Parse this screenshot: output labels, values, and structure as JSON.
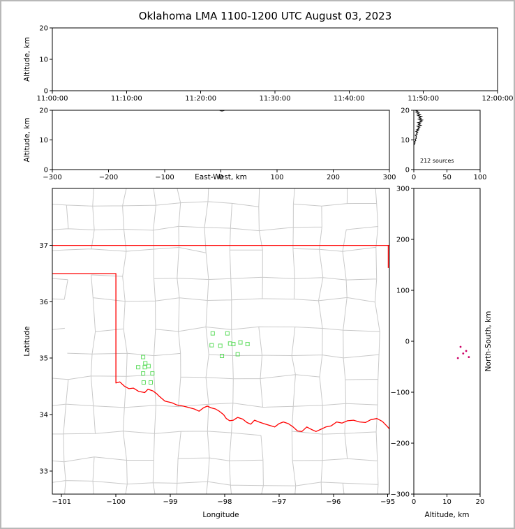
{
  "title": "Oklahoma LMA 1100-1200 UTC August 03, 2023",
  "figure": {
    "background": "#ffffff",
    "frame_color": "#b8b8b8"
  },
  "chart_data": [
    {
      "id": "time_height",
      "type": "scatter",
      "xlabel": "",
      "ylabel": "Altitude, km",
      "xlim": [
        0,
        3600
      ],
      "xtick_values": [
        0,
        600,
        1200,
        1800,
        2400,
        3000,
        3600
      ],
      "xtick_labels": [
        "11:00:00",
        "11:10:00",
        "11:20:00",
        "11:30:00",
        "11:40:00",
        "11:50:00",
        "12:00:00"
      ],
      "ylim": [
        0,
        20
      ],
      "ytick_values": [
        0,
        10,
        20
      ],
      "ytick_labels": [
        "0",
        "10",
        "20"
      ],
      "points": [],
      "point_color": "#000000"
    },
    {
      "id": "ew_height",
      "type": "scatter",
      "xlabel": "East-West, km",
      "ylabel": "Altitude, km",
      "xlim": [
        -300,
        300
      ],
      "xtick_values": [
        -300,
        -200,
        -100,
        0,
        100,
        200,
        300
      ],
      "xtick_labels": [
        "−300",
        "−200",
        "−100",
        "0",
        "100",
        "200",
        "300"
      ],
      "ylim": [
        0,
        20
      ],
      "ytick_values": [
        0,
        10,
        20
      ],
      "ytick_labels": [
        "0",
        "10",
        "20"
      ],
      "points": [
        [
          -1,
          19.9
        ],
        [
          2,
          19.8
        ],
        [
          5,
          19.95
        ]
      ],
      "point_color": "#000000"
    },
    {
      "id": "source_histogram",
      "type": "line",
      "xlabel": "",
      "ylabel": "",
      "xlim": [
        0,
        100
      ],
      "xtick_values": [
        0,
        50,
        100
      ],
      "xtick_labels": [
        "0",
        "50",
        "100"
      ],
      "ylim": [
        0,
        20
      ],
      "ytick_values": [
        0,
        10,
        20
      ],
      "ytick_labels": [
        "0",
        "10",
        "20"
      ],
      "annotation": "212 sources",
      "line_color": "#000000",
      "profile_count_alt": [
        [
          2,
          20
        ],
        [
          6,
          19.7
        ],
        [
          3,
          19.4
        ],
        [
          8,
          19.1
        ],
        [
          5,
          18.8
        ],
        [
          10,
          18.5
        ],
        [
          6,
          18.2
        ],
        [
          12,
          17.9
        ],
        [
          8,
          17.6
        ],
        [
          11,
          17.3
        ],
        [
          7,
          17.0
        ],
        [
          13,
          16.7
        ],
        [
          9,
          16.4
        ],
        [
          12,
          16.1
        ],
        [
          6,
          15.8
        ],
        [
          10,
          15.5
        ],
        [
          7,
          15.2
        ],
        [
          11,
          14.9
        ],
        [
          5,
          14.6
        ],
        [
          9,
          14.3
        ],
        [
          6,
          14.0
        ],
        [
          8,
          13.7
        ],
        [
          4,
          13.4
        ],
        [
          7,
          13.1
        ],
        [
          3,
          12.8
        ],
        [
          6,
          12.5
        ],
        [
          4,
          12.2
        ],
        [
          5,
          11.9
        ],
        [
          2,
          11.6
        ],
        [
          4,
          11.3
        ],
        [
          3,
          11.0
        ],
        [
          4,
          10.6
        ],
        [
          2,
          10.2
        ],
        [
          3,
          9.8
        ],
        [
          1,
          9.4
        ],
        [
          2,
          9.0
        ],
        [
          1,
          8.6
        ],
        [
          0,
          8.2
        ]
      ]
    },
    {
      "id": "plan_view",
      "type": "scatter",
      "xlabel": "Longitude",
      "ylabel": "Latitude",
      "xlim": [
        -101.17,
        -94.97
      ],
      "xtick_values": [
        -101,
        -100,
        -99,
        -98,
        -97,
        -96,
        -95
      ],
      "xtick_labels": [
        "−101",
        "−100",
        "−99",
        "−98",
        "−97",
        "−96",
        "−95"
      ],
      "ylim": [
        32.59,
        38.01
      ],
      "ytick_values": [
        33,
        34,
        35,
        36,
        37
      ],
      "ytick_labels": [
        "33",
        "34",
        "35",
        "36",
        "37"
      ],
      "marker": "open-square",
      "point_color": "#5fdc5f",
      "county_line_color": "#c9c9c9",
      "state_border_color": "#ff0000",
      "points": [
        [
          -98.22,
          35.44
        ],
        [
          -97.95,
          35.44
        ],
        [
          -98.24,
          35.23
        ],
        [
          -98.08,
          35.22
        ],
        [
          -97.9,
          35.26
        ],
        [
          -97.84,
          35.25
        ],
        [
          -97.71,
          35.28
        ],
        [
          -97.58,
          35.25
        ],
        [
          -98.05,
          35.04
        ],
        [
          -97.76,
          35.07
        ],
        [
          -99.5,
          35.02
        ],
        [
          -99.46,
          34.91
        ],
        [
          -99.59,
          34.84
        ],
        [
          -99.47,
          34.84
        ],
        [
          -99.4,
          34.86
        ],
        [
          -99.5,
          34.73
        ],
        [
          -99.33,
          34.73
        ],
        [
          -99.49,
          34.57
        ],
        [
          -99.36,
          34.57
        ]
      ],
      "state_border": [
        [
          [
            -101.17,
            37.0
          ],
          [
            -94.97,
            37.0
          ]
        ],
        [
          [
            -94.99,
            37.0
          ],
          [
            -94.99,
            36.6
          ]
        ],
        [
          [
            -101.17,
            36.5
          ],
          [
            -100.0,
            36.5
          ],
          [
            -100.0,
            34.56
          ],
          [
            -99.93,
            34.58
          ],
          [
            -99.84,
            34.5
          ],
          [
            -99.76,
            34.46
          ],
          [
            -99.68,
            34.47
          ],
          [
            -99.58,
            34.41
          ],
          [
            -99.47,
            34.39
          ],
          [
            -99.41,
            34.45
          ],
          [
            -99.32,
            34.42
          ],
          [
            -99.25,
            34.37
          ],
          [
            -99.21,
            34.33
          ],
          [
            -99.1,
            34.24
          ],
          [
            -98.97,
            34.21
          ],
          [
            -98.88,
            34.17
          ],
          [
            -98.76,
            34.15
          ],
          [
            -98.64,
            34.12
          ],
          [
            -98.56,
            34.1
          ],
          [
            -98.47,
            34.06
          ],
          [
            -98.39,
            34.12
          ],
          [
            -98.32,
            34.15
          ],
          [
            -98.25,
            34.12
          ],
          [
            -98.17,
            34.1
          ],
          [
            -98.1,
            34.06
          ],
          [
            -98.02,
            34.0
          ],
          [
            -97.97,
            33.93
          ],
          [
            -97.91,
            33.89
          ],
          [
            -97.84,
            33.9
          ],
          [
            -97.76,
            33.95
          ],
          [
            -97.67,
            33.92
          ],
          [
            -97.59,
            33.86
          ],
          [
            -97.52,
            33.83
          ],
          [
            -97.45,
            33.9
          ],
          [
            -97.37,
            33.87
          ],
          [
            -97.28,
            33.84
          ],
          [
            -97.18,
            33.81
          ],
          [
            -97.08,
            33.78
          ],
          [
            -97.0,
            33.84
          ],
          [
            -96.92,
            33.87
          ],
          [
            -96.83,
            33.84
          ],
          [
            -96.74,
            33.78
          ],
          [
            -96.66,
            33.71
          ],
          [
            -96.58,
            33.7
          ],
          [
            -96.49,
            33.78
          ],
          [
            -96.41,
            33.74
          ],
          [
            -96.32,
            33.7
          ],
          [
            -96.23,
            33.74
          ],
          [
            -96.14,
            33.78
          ],
          [
            -96.04,
            33.8
          ],
          [
            -95.94,
            33.87
          ],
          [
            -95.84,
            33.85
          ],
          [
            -95.74,
            33.89
          ],
          [
            -95.63,
            33.9
          ],
          [
            -95.52,
            33.87
          ],
          [
            -95.41,
            33.86
          ],
          [
            -95.31,
            33.91
          ],
          [
            -95.2,
            33.93
          ],
          [
            -95.1,
            33.88
          ],
          [
            -95.0,
            33.78
          ],
          [
            -94.95,
            33.72
          ]
        ]
      ]
    },
    {
      "id": "ns_height",
      "type": "scatter",
      "xlabel": "Altitude, km",
      "ylabel": "North-South, km",
      "xlim": [
        0,
        20
      ],
      "xtick_values": [
        0,
        10,
        20
      ],
      "xtick_labels": [
        "0",
        "10",
        "20"
      ],
      "ylim": [
        -300,
        300
      ],
      "ytick_values": [
        -300,
        -200,
        -100,
        0,
        100,
        200,
        300
      ],
      "ytick_labels": [
        "−300",
        "−200",
        "−100",
        "0",
        "100",
        "200",
        "300"
      ],
      "points": [
        [
          14.1,
          -11
        ],
        [
          15.8,
          -19
        ],
        [
          16.6,
          -31
        ],
        [
          13.3,
          -33
        ],
        [
          14.9,
          -24
        ]
      ],
      "point_color": "#cc0066"
    }
  ]
}
